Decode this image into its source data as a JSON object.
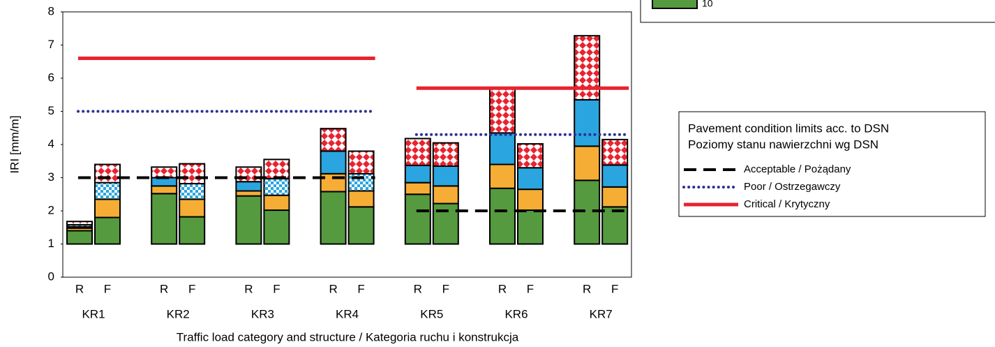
{
  "chart_data": {
    "type": "stacked_bar",
    "y_label": "IRI [mm/m]",
    "x_label": "Traffic load category and structure / Kategoria ruchu i konstrukcja",
    "categories": [
      "R",
      "F",
      "R",
      "F",
      "R",
      "F",
      "R",
      "F",
      "R",
      "F",
      "R",
      "F",
      "R",
      "F"
    ],
    "groups": [
      "KR1",
      "KR2",
      "KR3",
      "KR4",
      "KR5",
      "KR6",
      "KR7"
    ],
    "ylim": [
      0,
      8
    ],
    "yticks": [
      0,
      1,
      2,
      3,
      4,
      5,
      6,
      7,
      8
    ],
    "stack_base": 1,
    "series": [
      {
        "name": "10",
        "color": "#559a3f",
        "values": [
          0.4,
          0.8,
          1.52,
          0.82,
          1.45,
          1.02,
          1.58,
          1.12,
          1.5,
          1.22,
          1.68,
          1.02,
          1.92,
          1.12
        ]
      },
      {
        "color": "#f6ad35",
        "values": [
          0.08,
          0.55,
          0.23,
          0.53,
          0.15,
          0.45,
          0.54,
          0.48,
          0.35,
          0.53,
          0.72,
          0.63,
          1.03,
          0.6
        ]
      },
      {
        "color": "#2aa5df",
        "values": [
          0.04,
          0,
          0.25,
          0,
          0.28,
          0,
          0.68,
          0,
          0.52,
          0.6,
          0.95,
          0.65,
          1.4,
          0.66
        ]
      },
      {
        "color": "#2aa5df",
        "pattern": "checker",
        "values": [
          0.06,
          0.5,
          0,
          0.47,
          0,
          0.5,
          0,
          0.52,
          0,
          0,
          0,
          0,
          0,
          0
        ]
      },
      {
        "color": "#e8232f",
        "pattern": "diamond",
        "values": [
          0.1,
          0.55,
          0.32,
          0.6,
          0.44,
          0.58,
          0.68,
          0.68,
          0.81,
          0.7,
          1.37,
          0.72,
          1.93,
          0.77
        ]
      }
    ],
    "legend_title": [
      "Pavement condition limits acc. to DSN",
      "Poziomy stanu nawierzchni wg DSN"
    ],
    "limit_lines": [
      {
        "name": "Acceptable / Pożądany",
        "color": "#000000",
        "style": "dashed",
        "values": [
          3,
          3,
          3,
          3,
          2,
          2,
          2
        ]
      },
      {
        "name": "Poor / Ostrzegawczy",
        "color": "#2e3192",
        "style": "dotted",
        "values": [
          5,
          5,
          5,
          5,
          4.3,
          4.3,
          4.3
        ]
      },
      {
        "name": "Critical / Krytyczny",
        "color": "#e8232f",
        "style": "solid",
        "values": [
          6.6,
          6.6,
          6.6,
          6.6,
          5.7,
          5.7,
          5.7
        ]
      }
    ]
  }
}
